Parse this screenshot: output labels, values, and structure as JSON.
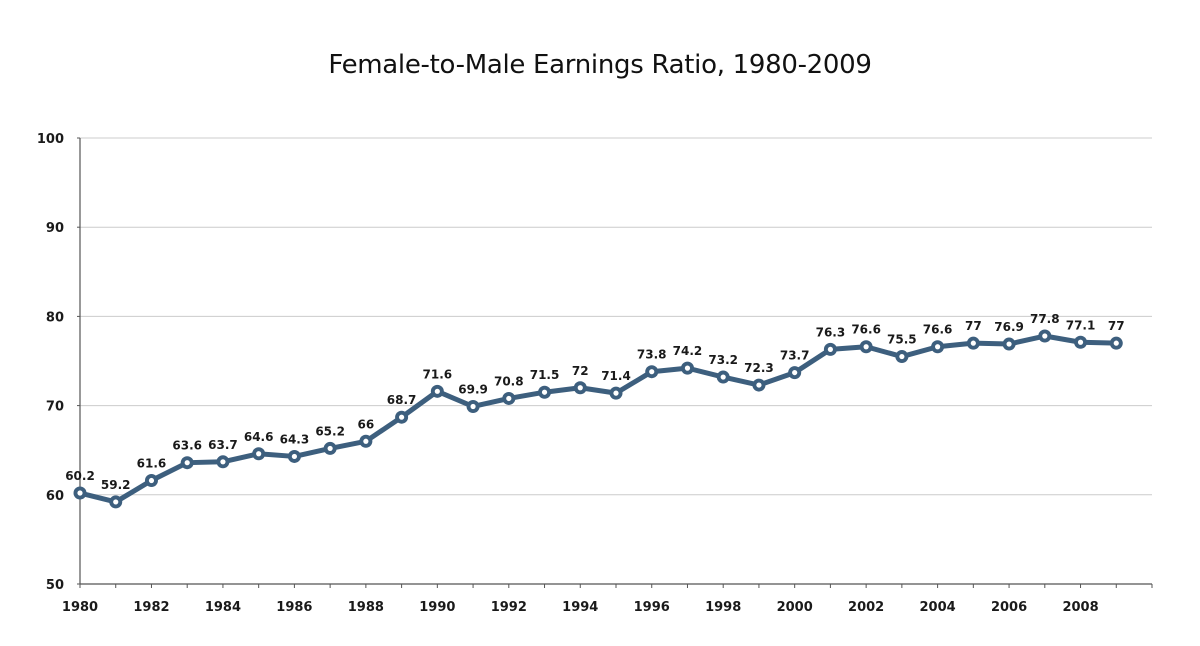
{
  "chart_data": {
    "type": "line",
    "title": "Female-to-Male Earnings Ratio, 1980-2009",
    "xlabel": "",
    "ylabel": "",
    "x": [
      1980,
      1981,
      1982,
      1983,
      1984,
      1985,
      1986,
      1987,
      1988,
      1989,
      1990,
      1991,
      1992,
      1993,
      1994,
      1995,
      1996,
      1997,
      1998,
      1999,
      2000,
      2001,
      2002,
      2003,
      2004,
      2005,
      2006,
      2007,
      2008,
      2009
    ],
    "series": [
      {
        "name": "Female-to-Male Earnings Ratio",
        "color": "#3d5f7e",
        "values": [
          60.2,
          59.2,
          61.6,
          63.6,
          63.7,
          64.6,
          64.3,
          65.2,
          66,
          68.7,
          71.6,
          69.9,
          70.8,
          71.5,
          72,
          71.4,
          73.8,
          74.2,
          73.2,
          72.3,
          73.7,
          76.3,
          76.6,
          75.5,
          76.6,
          77,
          76.9,
          77.8,
          77.1,
          77
        ],
        "labels": [
          "60.2",
          "59.2",
          "61.6",
          "63.6",
          "63.7",
          "64.6",
          "64.3",
          "65.2",
          "66",
          "68.7",
          "71.6",
          "69.9",
          "70.8",
          "71.5",
          "72",
          "71.4",
          "73.8",
          "74.2",
          "73.2",
          "72.3",
          "73.7",
          "76.3",
          "76.6",
          "75.5",
          "76.6",
          "77",
          "76.9",
          "77.8",
          "77.1",
          "77"
        ]
      }
    ],
    "xlim": [
      1980,
      2010
    ],
    "ylim": [
      50,
      100
    ],
    "yticks": [
      50,
      60,
      70,
      80,
      90,
      100
    ],
    "xtick_labels": [
      "1980",
      "1982",
      "1984",
      "1986",
      "1988",
      "1990",
      "1992",
      "1994",
      "1996",
      "1998",
      "2000",
      "2002",
      "2004",
      "2006",
      "2008"
    ],
    "grid": "horizontal",
    "legend": "none",
    "colors": {
      "line": "#3d5f7e",
      "grid": "#cccccc",
      "axis": "#555555",
      "marker_fill": "#ffffff"
    }
  }
}
